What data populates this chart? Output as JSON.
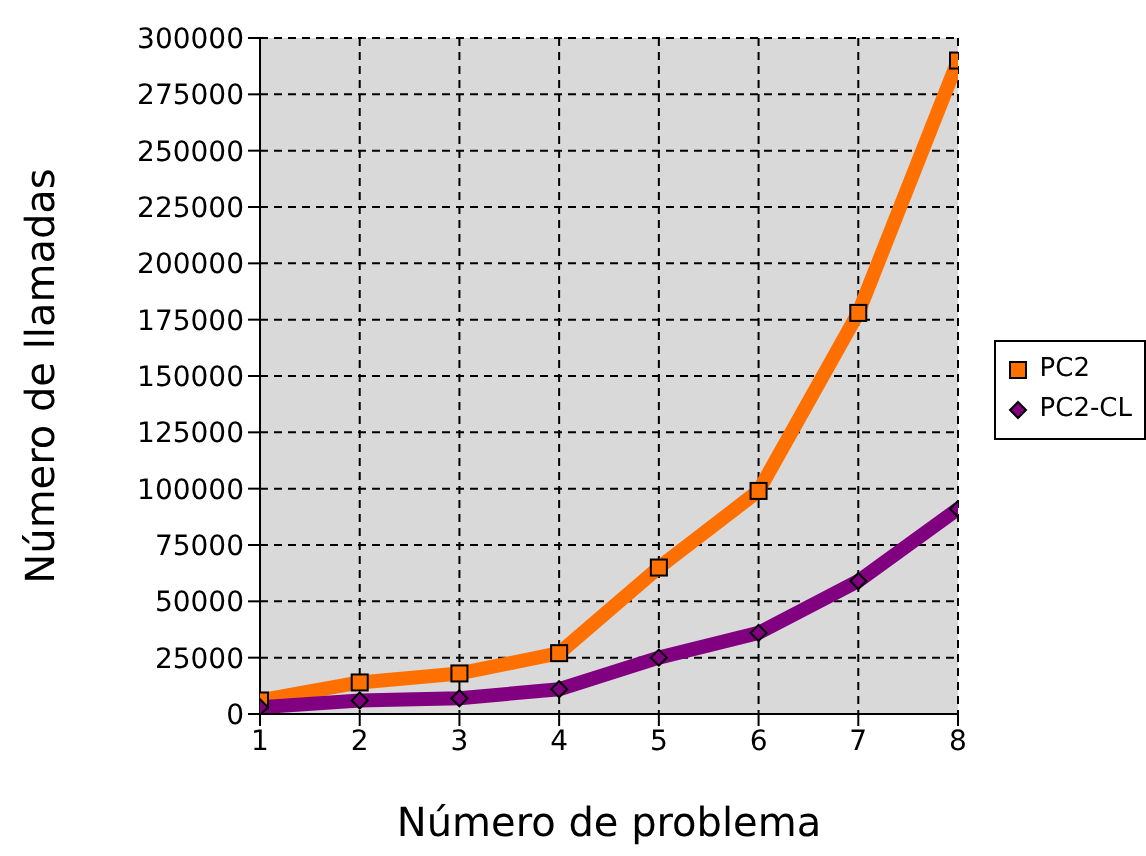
{
  "chart_data": {
    "type": "line",
    "xlabel": "Número de problema",
    "ylabel": "Número de llamadas",
    "x": [
      1,
      2,
      3,
      4,
      5,
      6,
      7,
      8
    ],
    "series": [
      {
        "name": "PC2",
        "color": "#ff7000",
        "marker": "square",
        "values": [
          6000,
          14000,
          18000,
          27000,
          65000,
          99000,
          178000,
          290000
        ]
      },
      {
        "name": "PC2-CL",
        "color": "#800080",
        "marker": "diamond",
        "values": [
          3000,
          6000,
          7000,
          11000,
          25000,
          36000,
          59000,
          91000
        ]
      }
    ],
    "xlim": [
      1,
      8
    ],
    "xticks": [
      1,
      2,
      3,
      4,
      5,
      6,
      7,
      8
    ],
    "ylim": [
      0,
      300000
    ],
    "yticks": [
      0,
      25000,
      50000,
      75000,
      100000,
      125000,
      150000,
      175000,
      200000,
      225000,
      250000,
      275000,
      300000
    ],
    "grid": true,
    "legend": "right",
    "line_style": "solid"
  }
}
